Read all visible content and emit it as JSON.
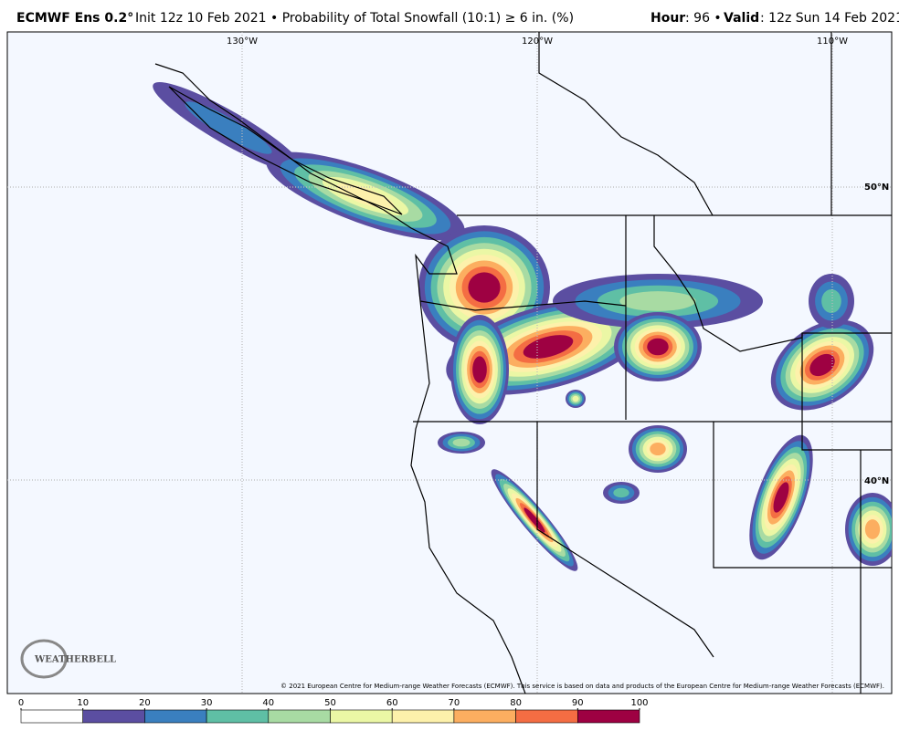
{
  "header": {
    "model": "ECMWF Ens 0.2°",
    "description": "Init 12z 10 Feb 2021 • Probability of Total Snowfall (10:1) ≥ 6 in. (%)",
    "hour_label": "Hour",
    "hour_value": ": 96 •",
    "valid_label": "Valid",
    "valid_value": ": 12z Sun 14 Feb 2021"
  },
  "map": {
    "lon_labels": [
      "130°W",
      "120°W",
      "110°W"
    ],
    "lat_labels": [
      "50°N",
      "40°N"
    ],
    "logo": "WEATHERBELL",
    "copyright": "© 2021 European Centre for Medium-range Weather Forecasts (ECMWF). This service is based on data and products of the European Centre for Medium-range Weather Forecasts (ECMWF)."
  },
  "colorbar": {
    "ticks": [
      0,
      10,
      20,
      30,
      40,
      50,
      60,
      70,
      80,
      90,
      100
    ],
    "colors": [
      "#ffffff",
      "#5b4ea1",
      "#3a7fbf",
      "#5fbfa5",
      "#a8dba3",
      "#ebf7a5",
      "#fdf1ab",
      "#fcae60",
      "#f46d43",
      "#9e0142"
    ]
  }
}
